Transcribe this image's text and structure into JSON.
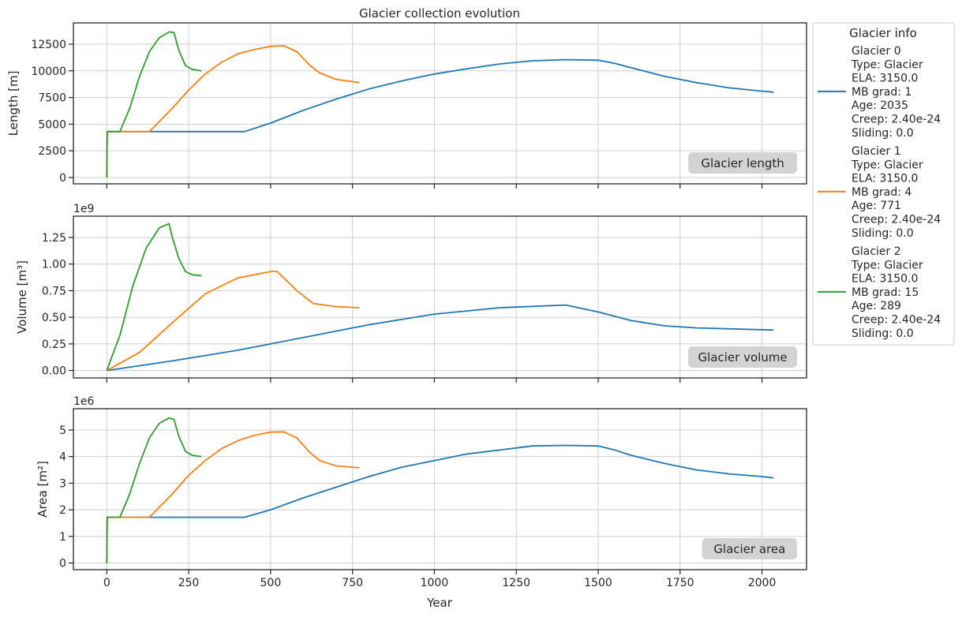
{
  "title": "Glacier collection evolution",
  "legend_title": "Glacier info",
  "xlabel": "Year",
  "x_ticks": [
    0,
    250,
    500,
    750,
    1000,
    1250,
    1500,
    1750,
    2000
  ],
  "colors": {
    "Glacier 0": "#1f77b4",
    "Glacier 1": "#ff7f0e",
    "Glacier 2": "#2ca02c"
  },
  "chart_data": [
    {
      "type": "line",
      "ylabel": "Length [m]",
      "annotation": "Glacier length",
      "ylim": [
        -600,
        14500
      ],
      "y_ticks": [
        0,
        2500,
        5000,
        7500,
        10000,
        12500
      ],
      "y_tick_labels": [
        "0",
        "2500",
        "5000",
        "7500",
        "10000",
        "12500"
      ],
      "series": [
        {
          "name": "Glacier 0",
          "points": [
            [
              0,
              0
            ],
            [
              1,
              4300
            ],
            [
              420,
              4300
            ],
            [
              500,
              5100
            ],
            [
              600,
              6300
            ],
            [
              700,
              7350
            ],
            [
              800,
              8300
            ],
            [
              900,
              9050
            ],
            [
              1000,
              9700
            ],
            [
              1100,
              10200
            ],
            [
              1200,
              10650
            ],
            [
              1300,
              10950
            ],
            [
              1400,
              11050
            ],
            [
              1500,
              11000
            ],
            [
              1550,
              10700
            ],
            [
              1600,
              10300
            ],
            [
              1700,
              9500
            ],
            [
              1800,
              8900
            ],
            [
              1900,
              8400
            ],
            [
              2000,
              8100
            ],
            [
              2035,
              8000
            ]
          ]
        },
        {
          "name": "Glacier 1",
          "points": [
            [
              0,
              0
            ],
            [
              1,
              4300
            ],
            [
              130,
              4300
            ],
            [
              200,
              6500
            ],
            [
              250,
              8200
            ],
            [
              300,
              9700
            ],
            [
              350,
              10800
            ],
            [
              400,
              11600
            ],
            [
              450,
              12000
            ],
            [
              500,
              12300
            ],
            [
              540,
              12350
            ],
            [
              580,
              11800
            ],
            [
              620,
              10500
            ],
            [
              650,
              9800
            ],
            [
              700,
              9200
            ],
            [
              771,
              8900
            ]
          ]
        },
        {
          "name": "Glacier 2",
          "points": [
            [
              0,
              0
            ],
            [
              1,
              4300
            ],
            [
              40,
              4300
            ],
            [
              70,
              6500
            ],
            [
              100,
              9500
            ],
            [
              130,
              11800
            ],
            [
              160,
              13100
            ],
            [
              190,
              13650
            ],
            [
              205,
              13600
            ],
            [
              220,
              11900
            ],
            [
              240,
              10500
            ],
            [
              260,
              10150
            ],
            [
              289,
              10000
            ]
          ]
        }
      ]
    },
    {
      "type": "line",
      "ylabel": "Volume [m³]",
      "multiplier": "1e9",
      "annotation": "Glacier volume",
      "ylim": [
        -0.07,
        1.45
      ],
      "y_ticks": [
        0,
        0.25,
        0.5,
        0.75,
        1.0,
        1.25
      ],
      "y_tick_labels": [
        "0.00",
        "0.25",
        "0.50",
        "0.75",
        "1.00",
        "1.25"
      ],
      "series": [
        {
          "name": "Glacier 0",
          "points": [
            [
              0,
              0
            ],
            [
              200,
              0.09
            ],
            [
              400,
              0.19
            ],
            [
              600,
              0.31
            ],
            [
              800,
              0.43
            ],
            [
              1000,
              0.53
            ],
            [
              1200,
              0.59
            ],
            [
              1400,
              0.615
            ],
            [
              1500,
              0.55
            ],
            [
              1600,
              0.47
            ],
            [
              1700,
              0.42
            ],
            [
              1800,
              0.4
            ],
            [
              2035,
              0.38
            ]
          ]
        },
        {
          "name": "Glacier 1",
          "points": [
            [
              0,
              0
            ],
            [
              100,
              0.17
            ],
            [
              200,
              0.45
            ],
            [
              300,
              0.72
            ],
            [
              400,
              0.87
            ],
            [
              500,
              0.93
            ],
            [
              520,
              0.93
            ],
            [
              580,
              0.75
            ],
            [
              630,
              0.63
            ],
            [
              700,
              0.6
            ],
            [
              771,
              0.59
            ]
          ]
        },
        {
          "name": "Glacier 2",
          "points": [
            [
              0,
              0
            ],
            [
              40,
              0.33
            ],
            [
              80,
              0.8
            ],
            [
              120,
              1.15
            ],
            [
              160,
              1.34
            ],
            [
              190,
              1.38
            ],
            [
              200,
              1.25
            ],
            [
              220,
              1.05
            ],
            [
              240,
              0.93
            ],
            [
              260,
              0.9
            ],
            [
              289,
              0.89
            ]
          ]
        }
      ]
    },
    {
      "type": "line",
      "ylabel": "Area [m²]",
      "multiplier": "1e6",
      "annotation": "Glacier area",
      "ylim": [
        -0.25,
        5.8
      ],
      "y_ticks": [
        0,
        1,
        2,
        3,
        4,
        5
      ],
      "y_tick_labels": [
        "0",
        "1",
        "2",
        "3",
        "4",
        "5"
      ],
      "series": [
        {
          "name": "Glacier 0",
          "points": [
            [
              0,
              0
            ],
            [
              1,
              1.72
            ],
            [
              420,
              1.72
            ],
            [
              500,
              2.0
            ],
            [
              600,
              2.45
            ],
            [
              700,
              2.85
            ],
            [
              800,
              3.25
            ],
            [
              900,
              3.6
            ],
            [
              1000,
              3.85
            ],
            [
              1100,
              4.1
            ],
            [
              1200,
              4.25
            ],
            [
              1300,
              4.4
            ],
            [
              1400,
              4.42
            ],
            [
              1500,
              4.4
            ],
            [
              1550,
              4.25
            ],
            [
              1600,
              4.05
            ],
            [
              1700,
              3.75
            ],
            [
              1800,
              3.5
            ],
            [
              1900,
              3.35
            ],
            [
              2000,
              3.25
            ],
            [
              2035,
              3.2
            ]
          ]
        },
        {
          "name": "Glacier 1",
          "points": [
            [
              0,
              0
            ],
            [
              1,
              1.72
            ],
            [
              130,
              1.72
            ],
            [
              200,
              2.6
            ],
            [
              250,
              3.3
            ],
            [
              300,
              3.85
            ],
            [
              350,
              4.3
            ],
            [
              400,
              4.6
            ],
            [
              450,
              4.8
            ],
            [
              500,
              4.92
            ],
            [
              540,
              4.93
            ],
            [
              580,
              4.7
            ],
            [
              620,
              4.15
            ],
            [
              650,
              3.85
            ],
            [
              700,
              3.65
            ],
            [
              771,
              3.58
            ]
          ]
        },
        {
          "name": "Glacier 2",
          "points": [
            [
              0,
              0
            ],
            [
              1,
              1.72
            ],
            [
              40,
              1.72
            ],
            [
              70,
              2.6
            ],
            [
              100,
              3.75
            ],
            [
              130,
              4.7
            ],
            [
              160,
              5.25
            ],
            [
              190,
              5.45
            ],
            [
              205,
              5.4
            ],
            [
              220,
              4.75
            ],
            [
              240,
              4.2
            ],
            [
              260,
              4.05
            ],
            [
              289,
              4.0
            ]
          ]
        }
      ]
    }
  ],
  "legend": [
    {
      "name": "Glacier 0",
      "lines": [
        "Glacier 0",
        "Type: Glacier",
        "ELA: 3150.0",
        "MB grad: 1",
        "Age: 2035",
        "Creep: 2.40e-24",
        "Sliding: 0.0"
      ]
    },
    {
      "name": "Glacier 1",
      "lines": [
        "Glacier 1",
        "Type: Glacier",
        "ELA: 3150.0",
        "MB grad: 4",
        "Age: 771",
        "Creep: 2.40e-24",
        "Sliding: 0.0"
      ]
    },
    {
      "name": "Glacier 2",
      "lines": [
        "Glacier 2",
        "Type: Glacier",
        "ELA: 3150.0",
        "MB grad: 15",
        "Age: 289",
        "Creep: 2.40e-24",
        "Sliding: 0.0"
      ]
    }
  ]
}
